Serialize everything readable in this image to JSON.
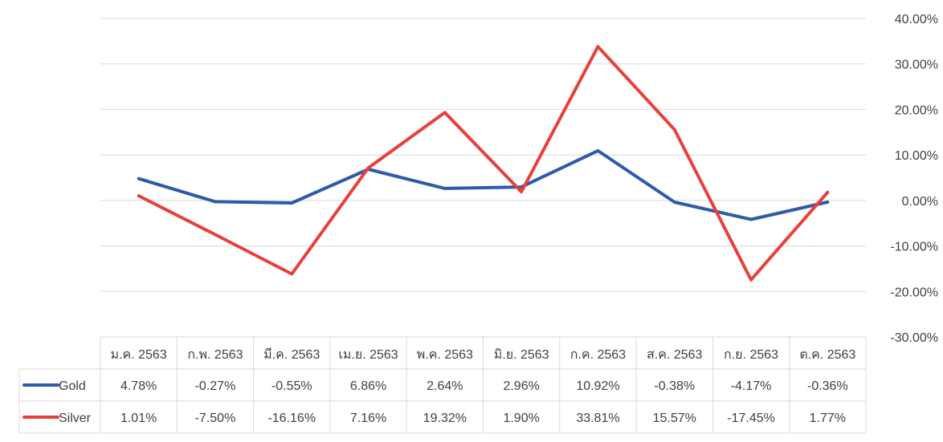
{
  "chart_data": {
    "type": "line",
    "categories": [
      "ม.ค. 2563",
      "ก.พ. 2563",
      "มี.ค. 2563",
      "เม.ย. 2563",
      "พ.ค. 2563",
      "มิ.ย. 2563",
      "ก.ค. 2563",
      "ส.ค. 2563",
      "ก.ย. 2563",
      "ต.ค. 2563"
    ],
    "series": [
      {
        "name": "Gold",
        "color": "#2e5aa8",
        "values": [
          4.78,
          -0.27,
          -0.55,
          6.86,
          2.64,
          2.96,
          10.92,
          -0.38,
          -4.17,
          -0.36
        ],
        "labels": [
          "4.78%",
          "-0.27%",
          "-0.55%",
          "6.86%",
          "2.64%",
          "2.96%",
          "10.92%",
          "-0.38%",
          "-4.17%",
          "-0.36%"
        ]
      },
      {
        "name": "Silver",
        "color": "#e8403a",
        "values": [
          1.01,
          -7.5,
          -16.16,
          7.16,
          19.32,
          1.9,
          33.81,
          15.57,
          -17.45,
          1.77
        ],
        "labels": [
          "1.01%",
          "-7.50%",
          "-16.16%",
          "7.16%",
          "19.32%",
          "1.90%",
          "33.81%",
          "15.57%",
          "-17.45%",
          "1.77%"
        ]
      }
    ],
    "ylim": [
      -30,
      40
    ],
    "y_ticks": [
      40,
      30,
      20,
      10,
      0,
      -10,
      -20,
      -30
    ],
    "y_tick_labels": [
      "40.00%",
      "30.00%",
      "20.00%",
      "10.00%",
      "0.00%",
      "-10.00%",
      "-20.00%",
      "-30.00%"
    ],
    "y_axis_side": "right",
    "grid": true,
    "legend": "data-table"
  }
}
